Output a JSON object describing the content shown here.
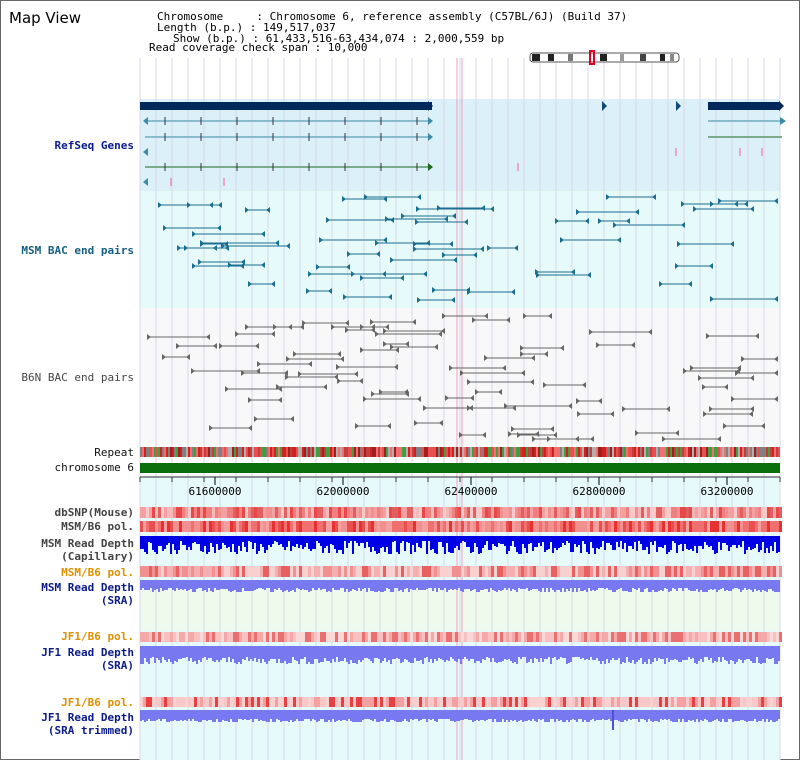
{
  "header": {
    "title": "Map View",
    "info_lines": [
      "Chromosome     : Chromosome 6, reference assembly (C57BL/6J) (Build 37)",
      "Length (b.p.) : 149,517,037",
      "Show (b.p.) : 61,433,516-63,434,074 : 2,000,559 bp",
      "Read coverage check span : 10,000"
    ]
  },
  "tracks": {
    "refseq": "RefSeq Genes",
    "msm_bac": "MSM BAC end pairs",
    "b6n_bac": "B6N BAC end pairs",
    "repeat": "Repeat",
    "chromosome": "chromosome 6",
    "dbsnp": "dbSNP(Mouse)",
    "msm_b6_pol": "MSM/B6 pol.",
    "msm_depth_cap_1": "MSM Read Depth",
    "msm_depth_cap_2": "(Capillary)",
    "msm_b6_pol2": "MSM/B6 pol.",
    "msm_depth_sra_1": "MSM Read Depth",
    "msm_depth_sra_2": "(SRA)",
    "jf1_pol": "JF1/B6 pol.",
    "jf1_depth_sra_1": "JF1 Read Depth",
    "jf1_depth_sra_2": "(SRA)",
    "jf1_pol2": "JF1/B6 pol.",
    "jf1_depth_trim_1": "JF1 Read Depth",
    "jf1_depth_trim_2": "(SRA trimmed)"
  },
  "axis": {
    "ticks": [
      "61600000",
      "62000000",
      "62400000",
      "62800000",
      "63200000"
    ]
  },
  "colors": {
    "refseq_bg": "#dcf0fa",
    "msm_bg": "#e6fafa",
    "b6n_bg": "#f8f8f8",
    "gene_dark": "#00285a",
    "chromosome": "#0a6e0a",
    "depth_blue": "#0000e6",
    "depth_light": "#7878f0"
  }
}
